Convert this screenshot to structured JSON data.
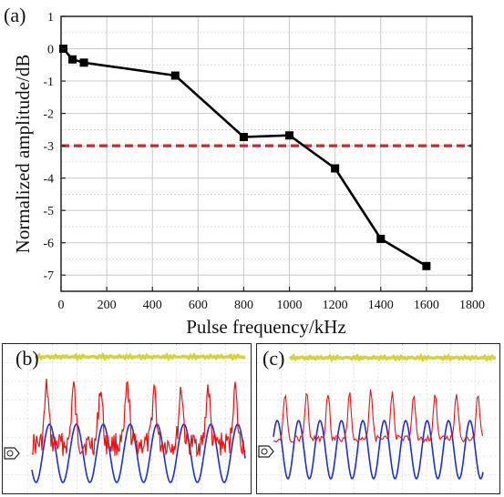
{
  "chart_data": [
    {
      "type": "line",
      "panel_label": "(a)",
      "xlabel": "Pulse frequency/kHz",
      "ylabel": "Normalized amplitude/dB",
      "xlim": [
        0,
        1800
      ],
      "ylim": [
        -7.5,
        1
      ],
      "xticks": [
        "0",
        "200",
        "400",
        "600",
        "800",
        "1000",
        "1200",
        "1400",
        "1600",
        "1800"
      ],
      "yticks": [
        "1",
        "0",
        "-1",
        "-2",
        "-3",
        "-4",
        "-5",
        "-6",
        "-7"
      ],
      "grid": true,
      "series": [
        {
          "color": "#000000",
          "marker": "square",
          "x": [
            10,
            50,
            100,
            500,
            800,
            1000,
            1200,
            1400,
            1600
          ],
          "y": [
            0,
            -0.33,
            -0.43,
            -0.83,
            -2.73,
            -2.68,
            -3.7,
            -5.88,
            -6.72
          ]
        }
      ],
      "reference_line": {
        "y": -3,
        "color": "#e0201e",
        "style": "dashed"
      }
    },
    {
      "type": "line",
      "panel_label": "(b)",
      "note_marker": "oscilloscope trace"
    },
    {
      "type": "line",
      "panel_label": "(c)",
      "note_marker": "oscilloscope trace"
    }
  ],
  "colors": {
    "trace_yellow": "#d4d43a",
    "trace_red": "#ee1111",
    "trace_blue": "#1a2fd8",
    "grid": "#c8c8c8"
  }
}
